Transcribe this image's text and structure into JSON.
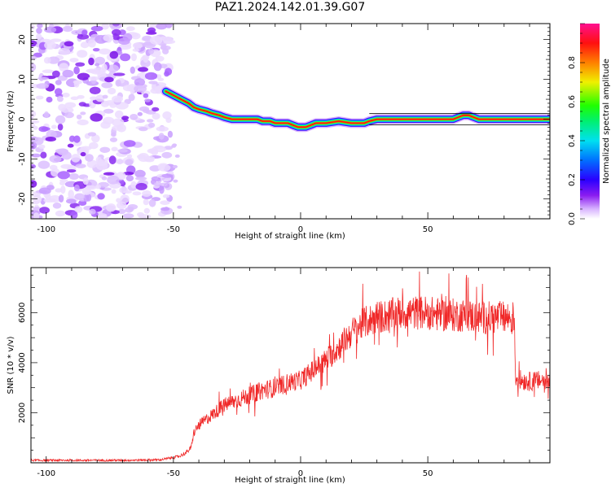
{
  "title": "PAZ1.2024.142.01.39.G07",
  "chart_data": [
    {
      "type": "heatmap",
      "xlabel": "Height of straight line (km)",
      "ylabel": "Frequency (Hz)",
      "xlim": [
        -106,
        98
      ],
      "ylim": [
        -25,
        24
      ],
      "xticks": [
        -100,
        -50,
        0,
        50
      ],
      "yticks": [
        -20,
        -10,
        0,
        10,
        20
      ],
      "colorbar": {
        "label": "Normalized spectral amplitude",
        "range": [
          0,
          1
        ],
        "ticks": [
          0.0,
          0.2,
          0.4,
          0.6,
          0.8
        ],
        "tick_labels": [
          "0.0",
          "0.2",
          "0.4",
          "0.6",
          "0.8"
        ],
        "colormap": "white-purple-blue-cyan-green-yellow-orange-red-magenta"
      },
      "noise_region_x": [
        -106,
        -51
      ],
      "ridge": {
        "x": [
          -53,
          -50,
          -47,
          -44,
          -42,
          -40,
          -37,
          -35,
          -32,
          -30,
          -27,
          -25,
          -22,
          -20,
          -17,
          -15,
          -12,
          -10,
          -7,
          -5,
          -3,
          -1,
          2,
          4,
          6,
          10,
          15,
          20,
          25,
          27,
          30,
          35,
          40,
          45,
          50,
          55,
          60,
          62,
          64,
          66,
          70,
          80,
          90,
          98
        ],
        "y": [
          7,
          6,
          5,
          4,
          3,
          2.5,
          2,
          1.5,
          1,
          0.5,
          0,
          0,
          0,
          0,
          0,
          -0.5,
          -0.5,
          -1,
          -1,
          -1,
          -1.5,
          -2,
          -2,
          -1.5,
          -1,
          -1,
          -0.5,
          -1,
          -1,
          -0.5,
          0,
          0,
          0,
          0,
          0,
          0,
          0,
          0.5,
          1,
          1,
          0,
          0,
          0,
          0
        ]
      }
    },
    {
      "type": "line",
      "xlabel": "Height of straight line (km)",
      "ylabel": "SNR (10 * v/v)",
      "xlim": [
        -106,
        98
      ],
      "ylim": [
        0,
        7800
      ],
      "xticks": [
        -100,
        -50,
        0,
        50
      ],
      "yticks": [
        2000,
        4000,
        6000
      ],
      "line_color": "#f02828",
      "series": [
        {
          "x": [
            -106,
            -90,
            -70,
            -55,
            -48,
            -45,
            -43,
            -42,
            -40,
            -35,
            -30,
            -25,
            -20,
            -15,
            -10,
            -5,
            0,
            5,
            10,
            15,
            20,
            25,
            30,
            35,
            40,
            45,
            50,
            55,
            60,
            65,
            70,
            75,
            80,
            84,
            84.5,
            87,
            90,
            95,
            98
          ],
          "y": [
            100,
            100,
            100,
            120,
            250,
            400,
            600,
            1200,
            1500,
            1900,
            2300,
            2500,
            2700,
            2900,
            3000,
            3200,
            3300,
            3700,
            4100,
            4600,
            5200,
            5600,
            5800,
            5900,
            6000,
            6000,
            6000,
            5900,
            5900,
            5900,
            5800,
            5800,
            5800,
            5800,
            3400,
            3300,
            3250,
            3300,
            3200
          ]
        }
      ]
    }
  ]
}
